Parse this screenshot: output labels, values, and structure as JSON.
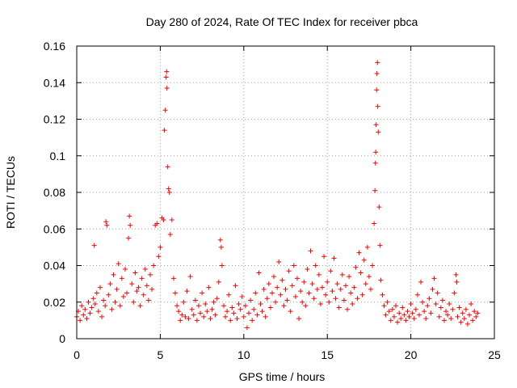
{
  "chart_data": {
    "type": "scatter",
    "title": "Day 280 of 2024, Rate Of TEC Index for receiver pbca",
    "xlabel": "GPS time / hours",
    "ylabel": "ROTI / TECUs",
    "xlim": [
      0,
      25
    ],
    "ylim": [
      0,
      0.16
    ],
    "xticks": [
      "0",
      "5",
      "10",
      "15",
      "20",
      "25"
    ],
    "yticks": [
      "0",
      "0.02",
      "0.04",
      "0.06",
      "0.08",
      "0.1",
      "0.12",
      "0.14",
      "0.16"
    ],
    "grid": true,
    "marker": "+",
    "series": [
      {
        "name": "ROTI",
        "color": "#ff0000",
        "points": [
          [
            0.0,
            0.012
          ],
          [
            0.1,
            0.015
          ],
          [
            0.2,
            0.01
          ],
          [
            0.3,
            0.018
          ],
          [
            0.4,
            0.013
          ],
          [
            0.5,
            0.016
          ],
          [
            0.6,
            0.011
          ],
          [
            0.7,
            0.02
          ],
          [
            0.8,
            0.014
          ],
          [
            0.9,
            0.017
          ],
          [
            1.0,
            0.022
          ],
          [
            1.05,
            0.051
          ],
          [
            1.1,
            0.019
          ],
          [
            1.2,
            0.025
          ],
          [
            1.3,
            0.015
          ],
          [
            1.4,
            0.028
          ],
          [
            1.5,
            0.012
          ],
          [
            1.6,
            0.021
          ],
          [
            1.7,
            0.018
          ],
          [
            1.75,
            0.064
          ],
          [
            1.8,
            0.062
          ],
          [
            1.9,
            0.024
          ],
          [
            2.0,
            0.03
          ],
          [
            2.1,
            0.016
          ],
          [
            2.2,
            0.035
          ],
          [
            2.3,
            0.02
          ],
          [
            2.4,
            0.027
          ],
          [
            2.5,
            0.041
          ],
          [
            2.6,
            0.018
          ],
          [
            2.7,
            0.033
          ],
          [
            2.8,
            0.023
          ],
          [
            2.9,
            0.038
          ],
          [
            3.0,
            0.025
          ],
          [
            3.1,
            0.055
          ],
          [
            3.15,
            0.067
          ],
          [
            3.2,
            0.062
          ],
          [
            3.3,
            0.03
          ],
          [
            3.4,
            0.02
          ],
          [
            3.5,
            0.036
          ],
          [
            3.6,
            0.026
          ],
          [
            3.7,
            0.028
          ],
          [
            3.8,
            0.018
          ],
          [
            3.9,
            0.033
          ],
          [
            4.0,
            0.024
          ],
          [
            4.1,
            0.038
          ],
          [
            4.2,
            0.029
          ],
          [
            4.3,
            0.021
          ],
          [
            4.4,
            0.035
          ],
          [
            4.5,
            0.027
          ],
          [
            4.6,
            0.04
          ],
          [
            4.7,
            0.062
          ],
          [
            4.8,
            0.063
          ],
          [
            4.9,
            0.045
          ],
          [
            5.0,
            0.05
          ],
          [
            5.1,
            0.066
          ],
          [
            5.2,
            0.065
          ],
          [
            5.25,
            0.114
          ],
          [
            5.3,
            0.125
          ],
          [
            5.35,
            0.143
          ],
          [
            5.38,
            0.146
          ],
          [
            5.4,
            0.137
          ],
          [
            5.45,
            0.094
          ],
          [
            5.5,
            0.082
          ],
          [
            5.55,
            0.08
          ],
          [
            5.6,
            0.057
          ],
          [
            5.7,
            0.065
          ],
          [
            5.8,
            0.033
          ],
          [
            5.9,
            0.025
          ],
          [
            6.0,
            0.018
          ],
          [
            6.1,
            0.015
          ],
          [
            6.2,
            0.01
          ],
          [
            6.3,
            0.013
          ],
          [
            6.4,
            0.02
          ],
          [
            6.5,
            0.012
          ],
          [
            6.6,
            0.026
          ],
          [
            6.7,
            0.011
          ],
          [
            6.8,
            0.034
          ],
          [
            6.9,
            0.016
          ],
          [
            7.0,
            0.013
          ],
          [
            7.1,
            0.021
          ],
          [
            7.2,
            0.01
          ],
          [
            7.3,
            0.018
          ],
          [
            7.4,
            0.014
          ],
          [
            7.5,
            0.025
          ],
          [
            7.6,
            0.012
          ],
          [
            7.7,
            0.019
          ],
          [
            7.8,
            0.015
          ],
          [
            7.9,
            0.028
          ],
          [
            8.0,
            0.011
          ],
          [
            8.1,
            0.016
          ],
          [
            8.2,
            0.02
          ],
          [
            8.3,
            0.013
          ],
          [
            8.4,
            0.022
          ],
          [
            8.5,
            0.031
          ],
          [
            8.6,
            0.054
          ],
          [
            8.65,
            0.05
          ],
          [
            8.7,
            0.04
          ],
          [
            8.8,
            0.018
          ],
          [
            8.9,
            0.012
          ],
          [
            9.0,
            0.015
          ],
          [
            9.1,
            0.024
          ],
          [
            9.2,
            0.01
          ],
          [
            9.3,
            0.017
          ],
          [
            9.4,
            0.014
          ],
          [
            9.5,
            0.029
          ],
          [
            9.6,
            0.011
          ],
          [
            9.7,
            0.019
          ],
          [
            9.8,
            0.016
          ],
          [
            9.9,
            0.023
          ],
          [
            10.0,
            0.012
          ],
          [
            10.1,
            0.018
          ],
          [
            10.2,
            0.006
          ],
          [
            10.3,
            0.014
          ],
          [
            10.4,
            0.021
          ],
          [
            10.5,
            0.01
          ],
          [
            10.6,
            0.016
          ],
          [
            10.7,
            0.025
          ],
          [
            10.8,
            0.013
          ],
          [
            10.9,
            0.036
          ],
          [
            11.0,
            0.019
          ],
          [
            11.1,
            0.015
          ],
          [
            11.2,
            0.027
          ],
          [
            11.3,
            0.012
          ],
          [
            11.4,
            0.022
          ],
          [
            11.5,
            0.03
          ],
          [
            11.6,
            0.017
          ],
          [
            11.7,
            0.025
          ],
          [
            11.8,
            0.034
          ],
          [
            11.9,
            0.02
          ],
          [
            12.0,
            0.028
          ],
          [
            12.1,
            0.042
          ],
          [
            12.2,
            0.024
          ],
          [
            12.3,
            0.032
          ],
          [
            12.4,
            0.018
          ],
          [
            12.5,
            0.027
          ],
          [
            12.6,
            0.021
          ],
          [
            12.7,
            0.037
          ],
          [
            12.8,
            0.015
          ],
          [
            12.9,
            0.029
          ],
          [
            13.0,
            0.04
          ],
          [
            13.1,
            0.023
          ],
          [
            13.2,
            0.033
          ],
          [
            13.3,
            0.011
          ],
          [
            13.4,
            0.026
          ],
          [
            13.5,
            0.02
          ],
          [
            13.6,
            0.031
          ],
          [
            13.7,
            0.018
          ],
          [
            13.8,
            0.038
          ],
          [
            13.9,
            0.025
          ],
          [
            14.0,
            0.048
          ],
          [
            14.1,
            0.03
          ],
          [
            14.2,
            0.022
          ],
          [
            14.3,
            0.04
          ],
          [
            14.4,
            0.027
          ],
          [
            14.5,
            0.035
          ],
          [
            14.6,
            0.019
          ],
          [
            14.7,
            0.028
          ],
          [
            14.8,
            0.045
          ],
          [
            14.9,
            0.024
          ],
          [
            15.0,
            0.031
          ],
          [
            15.1,
            0.02
          ],
          [
            15.2,
            0.037
          ],
          [
            15.3,
            0.026
          ],
          [
            15.4,
            0.044
          ],
          [
            15.5,
            0.022
          ],
          [
            15.6,
            0.03
          ],
          [
            15.7,
            0.017
          ],
          [
            15.8,
            0.027
          ],
          [
            15.9,
            0.035
          ],
          [
            16.0,
            0.021
          ],
          [
            16.1,
            0.029
          ],
          [
            16.2,
            0.016
          ],
          [
            16.3,
            0.034
          ],
          [
            16.4,
            0.025
          ],
          [
            16.5,
            0.019
          ],
          [
            16.6,
            0.028
          ],
          [
            16.7,
            0.039
          ],
          [
            16.8,
            0.022
          ],
          [
            16.9,
            0.047
          ],
          [
            17.0,
            0.036
          ],
          [
            17.1,
            0.024
          ],
          [
            17.2,
            0.043
          ],
          [
            17.3,
            0.03
          ],
          [
            17.4,
            0.05
          ],
          [
            17.5,
            0.034
          ],
          [
            17.6,
            0.027
          ],
          [
            17.7,
            0.04
          ],
          [
            17.8,
            0.063
          ],
          [
            17.85,
            0.081
          ],
          [
            17.88,
            0.096
          ],
          [
            17.9,
            0.102
          ],
          [
            17.92,
            0.117
          ],
          [
            17.95,
            0.136
          ],
          [
            17.97,
            0.145
          ],
          [
            18.0,
            0.151
          ],
          [
            18.02,
            0.127
          ],
          [
            18.05,
            0.113
          ],
          [
            18.1,
            0.072
          ],
          [
            18.15,
            0.051
          ],
          [
            18.2,
            0.032
          ],
          [
            18.3,
            0.024
          ],
          [
            18.4,
            0.018
          ],
          [
            18.5,
            0.013
          ],
          [
            18.6,
            0.02
          ],
          [
            18.7,
            0.015
          ],
          [
            18.8,
            0.01
          ],
          [
            18.9,
            0.016
          ],
          [
            19.0,
            0.012
          ],
          [
            19.1,
            0.018
          ],
          [
            19.2,
            0.009
          ],
          [
            19.3,
            0.014
          ],
          [
            19.4,
            0.011
          ],
          [
            19.5,
            0.017
          ],
          [
            19.6,
            0.013
          ],
          [
            19.7,
            0.01
          ],
          [
            19.8,
            0.015
          ],
          [
            19.9,
            0.012
          ],
          [
            20.0,
            0.019
          ],
          [
            20.1,
            0.014
          ],
          [
            20.2,
            0.011
          ],
          [
            20.3,
            0.016
          ],
          [
            20.4,
            0.024
          ],
          [
            20.5,
            0.013
          ],
          [
            20.6,
            0.031
          ],
          [
            20.7,
            0.02
          ],
          [
            20.8,
            0.015
          ],
          [
            20.9,
            0.011
          ],
          [
            21.0,
            0.018
          ],
          [
            21.1,
            0.022
          ],
          [
            21.2,
            0.014
          ],
          [
            21.3,
            0.027
          ],
          [
            21.4,
            0.033
          ],
          [
            21.5,
            0.019
          ],
          [
            21.6,
            0.025
          ],
          [
            21.7,
            0.012
          ],
          [
            21.8,
            0.017
          ],
          [
            21.9,
            0.021
          ],
          [
            22.0,
            0.01
          ],
          [
            22.1,
            0.015
          ],
          [
            22.2,
            0.013
          ],
          [
            22.3,
            0.019
          ],
          [
            22.4,
            0.011
          ],
          [
            22.5,
            0.016
          ],
          [
            22.6,
            0.025
          ],
          [
            22.7,
            0.035
          ],
          [
            22.75,
            0.031
          ],
          [
            22.8,
            0.012
          ],
          [
            22.9,
            0.017
          ],
          [
            23.0,
            0.009
          ],
          [
            23.1,
            0.014
          ],
          [
            23.2,
            0.011
          ],
          [
            23.3,
            0.016
          ],
          [
            23.4,
            0.008
          ],
          [
            23.5,
            0.013
          ],
          [
            23.6,
            0.019
          ],
          [
            23.7,
            0.01
          ],
          [
            23.8,
            0.015
          ],
          [
            23.9,
            0.012
          ],
          [
            24.0,
            0.014
          ]
        ]
      }
    ]
  }
}
